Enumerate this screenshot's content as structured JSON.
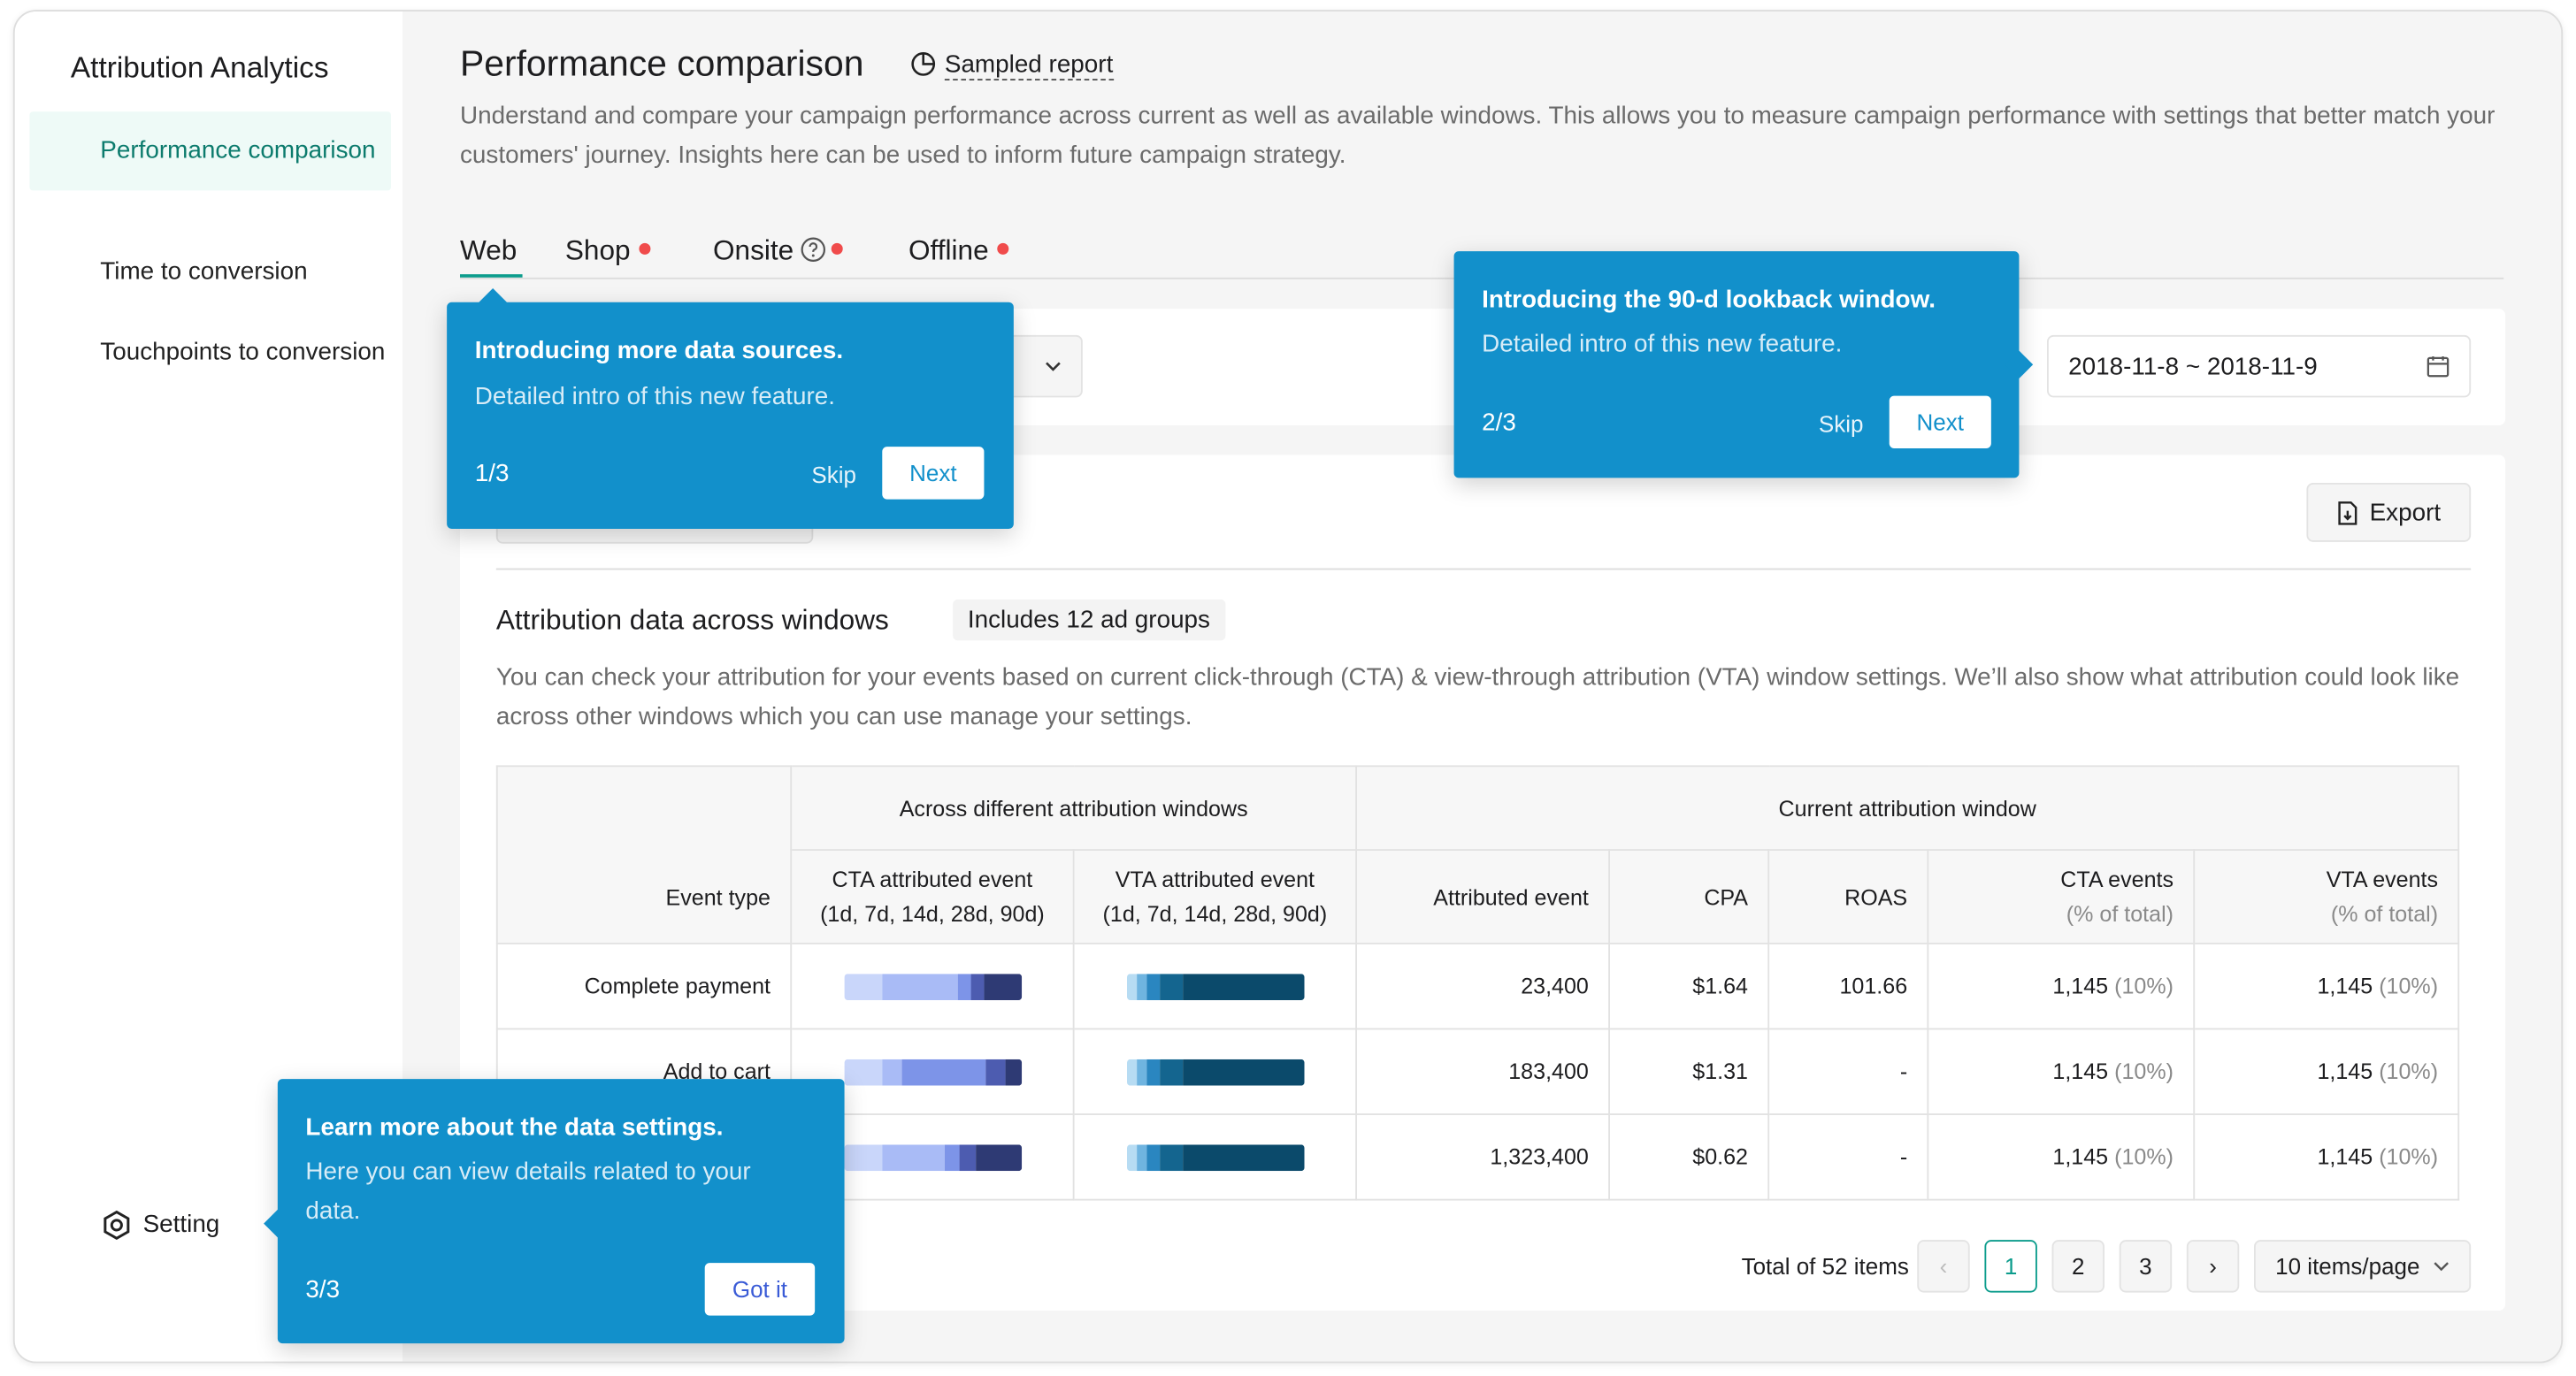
{
  "sidebar": {
    "title": "Attribution Analytics",
    "items": [
      "Performance comparison",
      "Time to conversion",
      "Touchpoints to conversion"
    ],
    "setting": "Setting"
  },
  "header": {
    "title": "Performance comparison",
    "badge": "Sampled report",
    "description": "Understand and compare your campaign performance across current as well as available windows. This allows you to measure campaign performance with settings that better match your customers' journey. Insights here can be used to inform future campaign strategy."
  },
  "tabs": [
    "Web",
    "Shop",
    "Onsite",
    "Offline"
  ],
  "filters": {
    "date_range": "2018-11-8 ~ 2018-11-9"
  },
  "panel": {
    "export": "Export",
    "section_title": "Attribution data across windows",
    "section_badge": "Includes 12 ad groups",
    "description": "You can check your attribution for your events based on current click-through (CTA) & view-through attribution (VTA) window settings. We’ll also show what attribution could look like across other windows which you can use manage your settings."
  },
  "table": {
    "group_headers": [
      "Across different attribution windows",
      "Current attribution window"
    ],
    "columns": [
      {
        "label": "Event type"
      },
      {
        "label": "CTA attributed event",
        "detail": "(1d, 7d, 14d, 28d, 90d)"
      },
      {
        "label": "VTA attributed event",
        "detail": "(1d, 7d, 14d, 28d, 90d)"
      },
      {
        "label": "Attributed event"
      },
      {
        "label": "CPA"
      },
      {
        "label": "ROAS"
      },
      {
        "label": "CTA events",
        "detail": "(% of total)"
      },
      {
        "label": "VTA events",
        "detail": "(% of total)"
      }
    ],
    "rows": [
      {
        "event": "Complete payment",
        "attributed": "23,400",
        "cpa": "$1.64",
        "roas": "101.66",
        "cta_events": "1,145",
        "cta_share": "(10%)",
        "vta_events": "1,145",
        "vta_share": "(10%)"
      },
      {
        "event": "Add to cart",
        "attributed": "183,400",
        "cpa": "$1.31",
        "roas": "-",
        "cta_events": "1,145",
        "cta_share": "(10%)",
        "vta_events": "1,145",
        "vta_share": "(10%)"
      },
      {
        "event": null,
        "attributed": "1,323,400",
        "cpa": "$0.62",
        "roas": "-",
        "cta_events": "1,145",
        "cta_share": "(10%)",
        "vta_events": "1,145",
        "vta_share": "(10%)"
      }
    ]
  },
  "pagination": {
    "total": "Total of 52 items",
    "pages": [
      "1",
      "2",
      "3"
    ],
    "page_size": "10 items/page"
  },
  "tooltips": [
    {
      "title": "Introducing more data sources.",
      "body": "Detailed intro of this new feature.",
      "step": "1/3",
      "skip": "Skip",
      "next": "Next"
    },
    {
      "title": "Introducing the 90-d lookback window.",
      "body": "Detailed intro of this new feature.",
      "step": "2/3",
      "skip": "Skip",
      "next": "Next"
    },
    {
      "title": "Learn more about the data settings.",
      "body": "Here you can view details related to your data.",
      "step": "3/3",
      "next": "Got it"
    }
  ]
}
